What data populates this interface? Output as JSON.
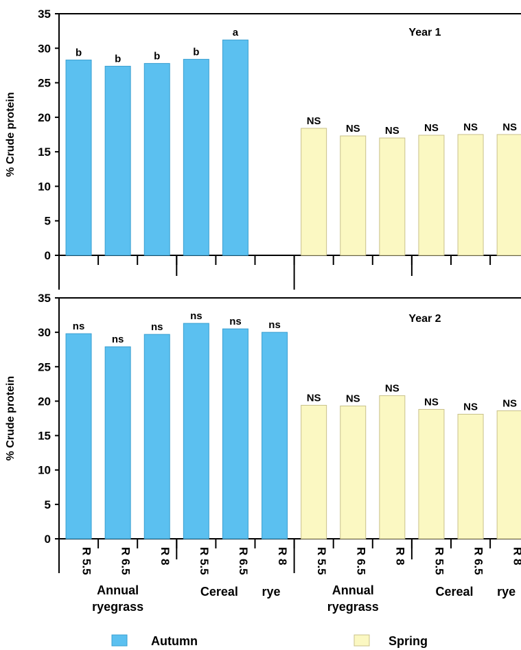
{
  "colors": {
    "autumn": "#5bc0f0",
    "spring": "#fbf8c2",
    "autumn_edge": "#3a9fd0",
    "spring_edge": "#c8c08a"
  },
  "legend": [
    {
      "name": "Autumn",
      "color": "#5bc0f0"
    },
    {
      "name": "Spring",
      "color": "#fbf8c2"
    }
  ],
  "x_tick_labels": [
    "R 5.5",
    "R 6.5",
    "R 8",
    "R 5.5",
    "R 6.5",
    "R 8",
    "R 5.5",
    "R 6.5",
    "R 8",
    "R 5.5",
    "R 6.5",
    "R 8"
  ],
  "group_labels": [
    {
      "line1": "Annual",
      "line2": "ryegrass"
    },
    {
      "line1": "Cereal",
      "line2": "rye"
    },
    {
      "line1": "Annual",
      "line2": "ryegrass"
    },
    {
      "line1": "Cereal",
      "line2": "rye"
    }
  ],
  "chart_data": [
    {
      "type": "bar",
      "title": "Year 1",
      "ylabel": "% Crude protein",
      "ylim": [
        0,
        35
      ],
      "yticks": [
        0,
        5,
        10,
        15,
        20,
        25,
        30,
        35
      ],
      "categories": [
        "R 5.5",
        "R 6.5",
        "R 8",
        "R 5.5",
        "R 6.5",
        "R 8",
        "R 5.5",
        "R 6.5",
        "R 8",
        "R 5.5",
        "R 6.5",
        "R 8"
      ],
      "series": [
        {
          "name": "Autumn",
          "values": [
            28.3,
            27.4,
            27.8,
            28.4,
            31.2,
            null,
            null,
            null,
            null,
            null,
            null,
            null
          ],
          "labels": [
            "b",
            "b",
            "b",
            "b",
            "a",
            "",
            "",
            "",
            "",
            "",
            "",
            ""
          ]
        },
        {
          "name": "Spring",
          "values": [
            null,
            null,
            null,
            null,
            null,
            null,
            18.4,
            17.3,
            17.0,
            17.4,
            17.5,
            17.5
          ],
          "labels": [
            "",
            "",
            "",
            "",
            "",
            "",
            "NS",
            "NS",
            "NS",
            "NS",
            "NS",
            "NS"
          ]
        }
      ]
    },
    {
      "type": "bar",
      "title": "Year 2",
      "ylabel": "% Crude protein",
      "ylim": [
        0,
        35
      ],
      "yticks": [
        0,
        5,
        10,
        15,
        20,
        25,
        30,
        35
      ],
      "categories": [
        "R 5.5",
        "R 6.5",
        "R 8",
        "R 5.5",
        "R 6.5",
        "R 8",
        "R 5.5",
        "R 6.5",
        "R 8",
        "R 5.5",
        "R 6.5",
        "R 8"
      ],
      "series": [
        {
          "name": "Autumn",
          "values": [
            29.8,
            27.9,
            29.7,
            31.3,
            30.5,
            30.0,
            null,
            null,
            null,
            null,
            null,
            null
          ],
          "labels": [
            "ns",
            "ns",
            "ns",
            "ns",
            "ns",
            "ns",
            "",
            "",
            "",
            "",
            "",
            ""
          ]
        },
        {
          "name": "Spring",
          "values": [
            null,
            null,
            null,
            null,
            null,
            null,
            19.4,
            19.3,
            20.8,
            18.8,
            18.1,
            18.6
          ],
          "labels": [
            "",
            "",
            "",
            "",
            "",
            "",
            "NS",
            "NS",
            "NS",
            "NS",
            "NS",
            "NS"
          ]
        }
      ]
    }
  ]
}
